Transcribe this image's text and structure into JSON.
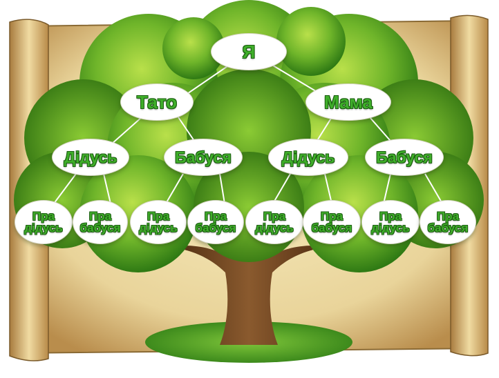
{
  "tree": {
    "me": "Я",
    "father": "Тато",
    "mother": "Мама",
    "grandparents": [
      "Дідусь",
      "Бабуся",
      "Дідусь",
      "Бабуся"
    ],
    "great_grandparents": [
      {
        "line1": "Пра",
        "line2": "дідусь"
      },
      {
        "line1": "Пра",
        "line2": "бабуся"
      },
      {
        "line1": "Пра",
        "line2": "дідусь"
      },
      {
        "line1": "Пра",
        "line2": "бабуся"
      },
      {
        "line1": "Пра",
        "line2": "дідусь"
      },
      {
        "line1": "Пра",
        "line2": "бабуся"
      },
      {
        "line1": "Пра",
        "line2": "дідусь"
      },
      {
        "line1": "Пра",
        "line2": "бабуся"
      }
    ]
  },
  "colors": {
    "label_green": "#3fae2a",
    "label_outline": "#1d5e12",
    "parchment": "#e9d9a2",
    "foliage": "#4f9a1f",
    "trunk": "#6b3f1d"
  }
}
